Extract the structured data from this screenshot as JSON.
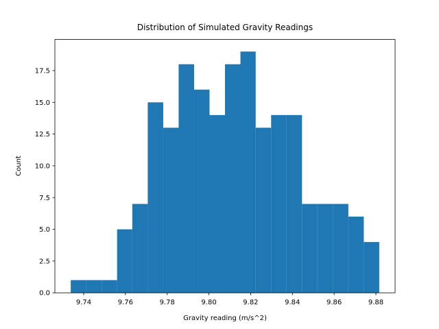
{
  "chart_data": {
    "type": "histogram",
    "title": "Distribution of Simulated Gravity Readings",
    "x_label": "Gravity reading (m/s^2)",
    "y_label": "Count",
    "color": "#1f77b4",
    "bins": [
      9.7338,
      9.7412,
      9.7486,
      9.756,
      9.7633,
      9.7707,
      9.7781,
      9.7855,
      9.7929,
      9.8003,
      9.8077,
      9.8151,
      9.8224,
      9.8298,
      9.8372,
      9.8446,
      9.852,
      9.8594,
      9.8668,
      9.8742,
      9.8816
    ],
    "counts": [
      1,
      1,
      1,
      5,
      7,
      15,
      13,
      18,
      16,
      14,
      18,
      19,
      13,
      14,
      14,
      7,
      7,
      7,
      6,
      4
    ],
    "xlim": [
      9.7262,
      9.8892
    ],
    "ylim": [
      0,
      19.95
    ],
    "xticks": [
      9.74,
      9.76,
      9.78,
      {
        "value": 9.8,
        "label": "9.80"
      },
      9.82,
      9.84,
      9.86,
      9.88
    ],
    "yticks": [
      {
        "value": 0,
        "label": "0.0"
      },
      2.5,
      {
        "value": 5,
        "label": "5.0"
      },
      7.5,
      {
        "value": 10,
        "label": "10.0"
      },
      12.5,
      {
        "value": 15,
        "label": "15.0"
      },
      17.5
    ],
    "grid": false
  }
}
